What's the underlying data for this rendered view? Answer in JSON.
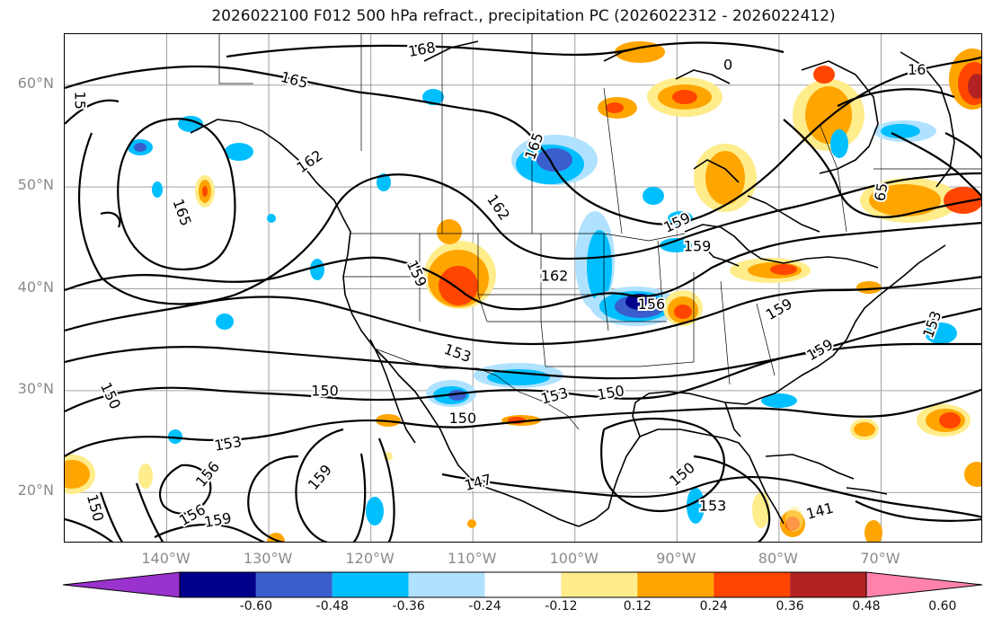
{
  "title": "2026022100 F012 500 hPa refract., precipitation PC (2026022312 - 2026022412)",
  "axes": {
    "lat_labels": [
      {
        "text": "60°N",
        "lat": 60
      },
      {
        "text": "50°N",
        "lat": 50
      },
      {
        "text": "40°N",
        "lat": 40
      },
      {
        "text": "30°N",
        "lat": 30
      },
      {
        "text": "20°N",
        "lat": 20
      }
    ],
    "lon_labels": [
      {
        "text": "140°W",
        "lon": -140
      },
      {
        "text": "130°W",
        "lon": -130
      },
      {
        "text": "120°W",
        "lon": -120
      },
      {
        "text": "110°W",
        "lon": -110
      },
      {
        "text": "100°W",
        "lon": -100
      },
      {
        "text": "90°W",
        "lon": -90
      },
      {
        "text": "80°W",
        "lon": -80
      },
      {
        "text": "70°W",
        "lon": -70
      }
    ],
    "lon_range": [
      -150,
      -60
    ],
    "lat_range": [
      15,
      65
    ],
    "grid": true
  },
  "contour_labels": [
    {
      "text": "168",
      "lon": -115,
      "lat": 63.5,
      "rot": -10
    },
    {
      "text": "165",
      "lon": -127.5,
      "lat": 60.5,
      "rot": 15
    },
    {
      "text": "162",
      "lon": -126,
      "lat": 52.5,
      "rot": -35
    },
    {
      "text": "165",
      "lon": -138.5,
      "lat": 47.5,
      "rot": 70
    },
    {
      "text": "165",
      "lon": -104,
      "lat": 54,
      "rot": -70
    },
    {
      "text": "162",
      "lon": -107.5,
      "lat": 48,
      "rot": 55
    },
    {
      "text": "159",
      "lon": -115.5,
      "lat": 41.5,
      "rot": 65
    },
    {
      "text": "162",
      "lon": -102,
      "lat": 41.3,
      "rot": 0
    },
    {
      "text": "156",
      "lon": -92.5,
      "lat": 38.5,
      "rot": 0
    },
    {
      "text": "159",
      "lon": -90,
      "lat": 46.5,
      "rot": -25
    },
    {
      "text": "159",
      "lon": -80,
      "lat": 38,
      "rot": -30
    },
    {
      "text": "153",
      "lon": -111.5,
      "lat": 33.7,
      "rot": 20
    },
    {
      "text": "153",
      "lon": -65,
      "lat": 36.5,
      "rot": -70
    },
    {
      "text": "159",
      "lon": -76,
      "lat": 34,
      "rot": -30
    },
    {
      "text": "150",
      "lon": -145.5,
      "lat": 29.5,
      "rot": 65
    },
    {
      "text": "150",
      "lon": -124.5,
      "lat": 30.0,
      "rot": 0
    },
    {
      "text": "150",
      "lon": -111,
      "lat": 27.3,
      "rot": 0
    },
    {
      "text": "153",
      "lon": -102,
      "lat": 29.5,
      "rot": -15
    },
    {
      "text": "150",
      "lon": -96.5,
      "lat": 29.8,
      "rot": -10
    },
    {
      "text": "153",
      "lon": -134,
      "lat": 24.8,
      "rot": -10
    },
    {
      "text": "156",
      "lon": -136,
      "lat": 21.8,
      "rot": -50
    },
    {
      "text": "159",
      "lon": -125,
      "lat": 21.5,
      "rot": -50
    },
    {
      "text": "147",
      "lon": -109.5,
      "lat": 21,
      "rot": -15
    },
    {
      "text": "150",
      "lon": -89.5,
      "lat": 21.8,
      "rot": -40
    },
    {
      "text": "153",
      "lon": -86.5,
      "lat": 18.7,
      "rot": 0
    },
    {
      "text": "141",
      "lon": -76,
      "lat": 18.2,
      "rot": -15
    },
    {
      "text": "156",
      "lon": -137.5,
      "lat": 17.8,
      "rot": -30
    },
    {
      "text": "159",
      "lon": -135,
      "lat": 17.3,
      "rot": -10
    },
    {
      "text": "150",
      "lon": -147,
      "lat": 18.5,
      "rot": 75
    },
    {
      "text": "15",
      "lon": -148.5,
      "lat": 58.5,
      "rot": 90
    },
    {
      "text": "16",
      "lon": -66.5,
      "lat": 61.5,
      "rot": 0
    },
    {
      "text": "0",
      "lon": -85,
      "lat": 62,
      "rot": 0
    },
    {
      "text": "65",
      "lon": -70,
      "lat": 49.5,
      "rot": -80
    },
    {
      "text": "159",
      "lon": -88,
      "lat": 44.2,
      "rot": 0
    }
  ],
  "colorbar": {
    "levels": [
      "-0.60",
      "-0.48",
      "-0.36",
      "-0.24",
      "-0.12",
      "0.12",
      "0.24",
      "0.36",
      "0.48",
      "0.60"
    ],
    "colors": [
      "#9a32cd",
      "#00008b",
      "#3a5fcd",
      "#00bfff",
      "#b0e2ff",
      "#ffffff",
      "#ffec8b",
      "#ffa500",
      "#ff4500",
      "#b22222",
      "#ff82ab"
    ]
  },
  "colors": {
    "coast": "#000000",
    "contour": "#000000",
    "grid": "#a0a0a0"
  }
}
